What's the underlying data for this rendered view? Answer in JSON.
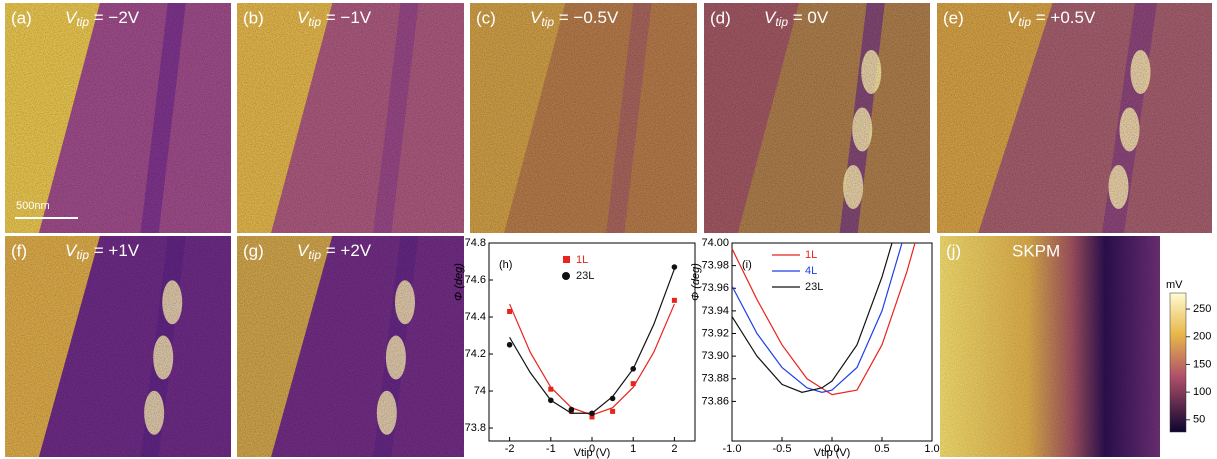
{
  "scale_bar": "500nm",
  "panels": [
    {
      "label": "(a)",
      "symbol": "V",
      "subscript": "tip",
      "value": " = −2V"
    },
    {
      "label": "(b)",
      "symbol": "V",
      "subscript": "tip",
      "value": " = −1V"
    },
    {
      "label": "(c)",
      "symbol": "V",
      "subscript": "tip",
      "value": " = −0.5V"
    },
    {
      "label": "(d)",
      "symbol": "V",
      "subscript": "tip",
      "value": " = 0V"
    },
    {
      "label": "(e)",
      "symbol": "V",
      "subscript": "tip",
      "value": " = +0.5V"
    },
    {
      "label": "(f)",
      "symbol": "V",
      "subscript": "tip",
      "value": " = +1V"
    },
    {
      "label": "(g)",
      "symbol": "V",
      "subscript": "tip",
      "value": " = +2V"
    }
  ],
  "skpm": {
    "label": "(j)",
    "title": "SKPM",
    "unit": "mV",
    "clim": [
      28,
      279
    ],
    "ticks": [
      50,
      100,
      150,
      200,
      250
    ]
  },
  "chart_data": [
    {
      "type": "scatter",
      "label": "(h)",
      "x_label": "Vtip (V)",
      "y_label": "Φ (deg)",
      "xlim": [
        -2.5,
        2.5
      ],
      "xticks": [
        -2,
        -1,
        0,
        1,
        2
      ],
      "ylim": [
        73.73,
        74.8
      ],
      "yticks": [
        73.8,
        74.0,
        74.2,
        74.4,
        74.6,
        74.8
      ],
      "series": [
        {
          "name": "1L",
          "color": "#e8241c",
          "marker": "square",
          "x": [
            -2,
            -1,
            -0.5,
            0,
            0.5,
            1,
            2
          ],
          "values": [
            74.43,
            74.01,
            73.89,
            73.86,
            73.89,
            74.04,
            74.49
          ],
          "fit": {
            "x": [
              -2,
              -1.5,
              -1,
              -0.5,
              0,
              0.5,
              1,
              1.5,
              2
            ],
            "values": [
              74.47,
              74.21,
              74.02,
              73.91,
              73.87,
              73.91,
              74.02,
              74.21,
              74.47
            ]
          }
        },
        {
          "name": "23L",
          "color": "#111111",
          "marker": "circle",
          "x": [
            -2,
            -1,
            -0.5,
            0,
            0.5,
            1,
            2
          ],
          "values": [
            74.25,
            73.95,
            73.9,
            73.88,
            73.96,
            74.12,
            74.67
          ],
          "fit": {
            "x": [
              -2,
              -1.5,
              -1,
              -0.5,
              0,
              0.5,
              1,
              1.5,
              2
            ],
            "values": [
              74.29,
              74.1,
              73.95,
              73.88,
              73.88,
              73.97,
              74.12,
              74.36,
              74.66
            ]
          }
        }
      ]
    },
    {
      "type": "line",
      "label": "(i)",
      "x_label": "Vtip (V)",
      "y_label": "Φ (deg)",
      "xlim": [
        -1,
        1
      ],
      "xticks": [
        {
          "value": -1,
          "label": "-1.0"
        },
        {
          "value": -0.5,
          "label": "-0.5"
        },
        {
          "value": 0,
          "label": "0.0"
        },
        {
          "value": 0.5,
          "label": "0.5"
        },
        {
          "value": 1,
          "label": "1.0"
        }
      ],
      "ylim": [
        73.825,
        74.0
      ],
      "yticks": [
        73.86,
        73.88,
        {
          "value": 73.9,
          "label": "73.90"
        },
        73.92,
        73.94,
        73.96,
        73.98,
        {
          "value": 74,
          "label": "74.00"
        }
      ],
      "series": [
        {
          "name": "1L",
          "color": "#e8241c",
          "x": [
            -1,
            -0.75,
            -0.5,
            -0.25,
            0,
            0.25,
            0.5,
            0.75,
            0.83
          ],
          "values": [
            73.995,
            73.95,
            73.91,
            73.88,
            73.866,
            73.87,
            73.91,
            73.975,
            74.0
          ]
        },
        {
          "name": "4L",
          "color": "#1f3fe8",
          "x": [
            -1,
            -0.75,
            -0.5,
            -0.25,
            -0.1,
            0,
            0.25,
            0.5,
            0.7
          ],
          "values": [
            73.962,
            73.92,
            73.89,
            73.872,
            73.868,
            73.87,
            73.89,
            73.94,
            74.0
          ]
        },
        {
          "name": "23L",
          "color": "#111111",
          "x": [
            -1,
            -0.75,
            -0.5,
            -0.3,
            -0.1,
            0,
            0.25,
            0.5,
            0.6
          ],
          "values": [
            73.935,
            73.9,
            73.875,
            73.868,
            73.872,
            73.878,
            73.91,
            73.97,
            74.0
          ]
        }
      ]
    }
  ]
}
